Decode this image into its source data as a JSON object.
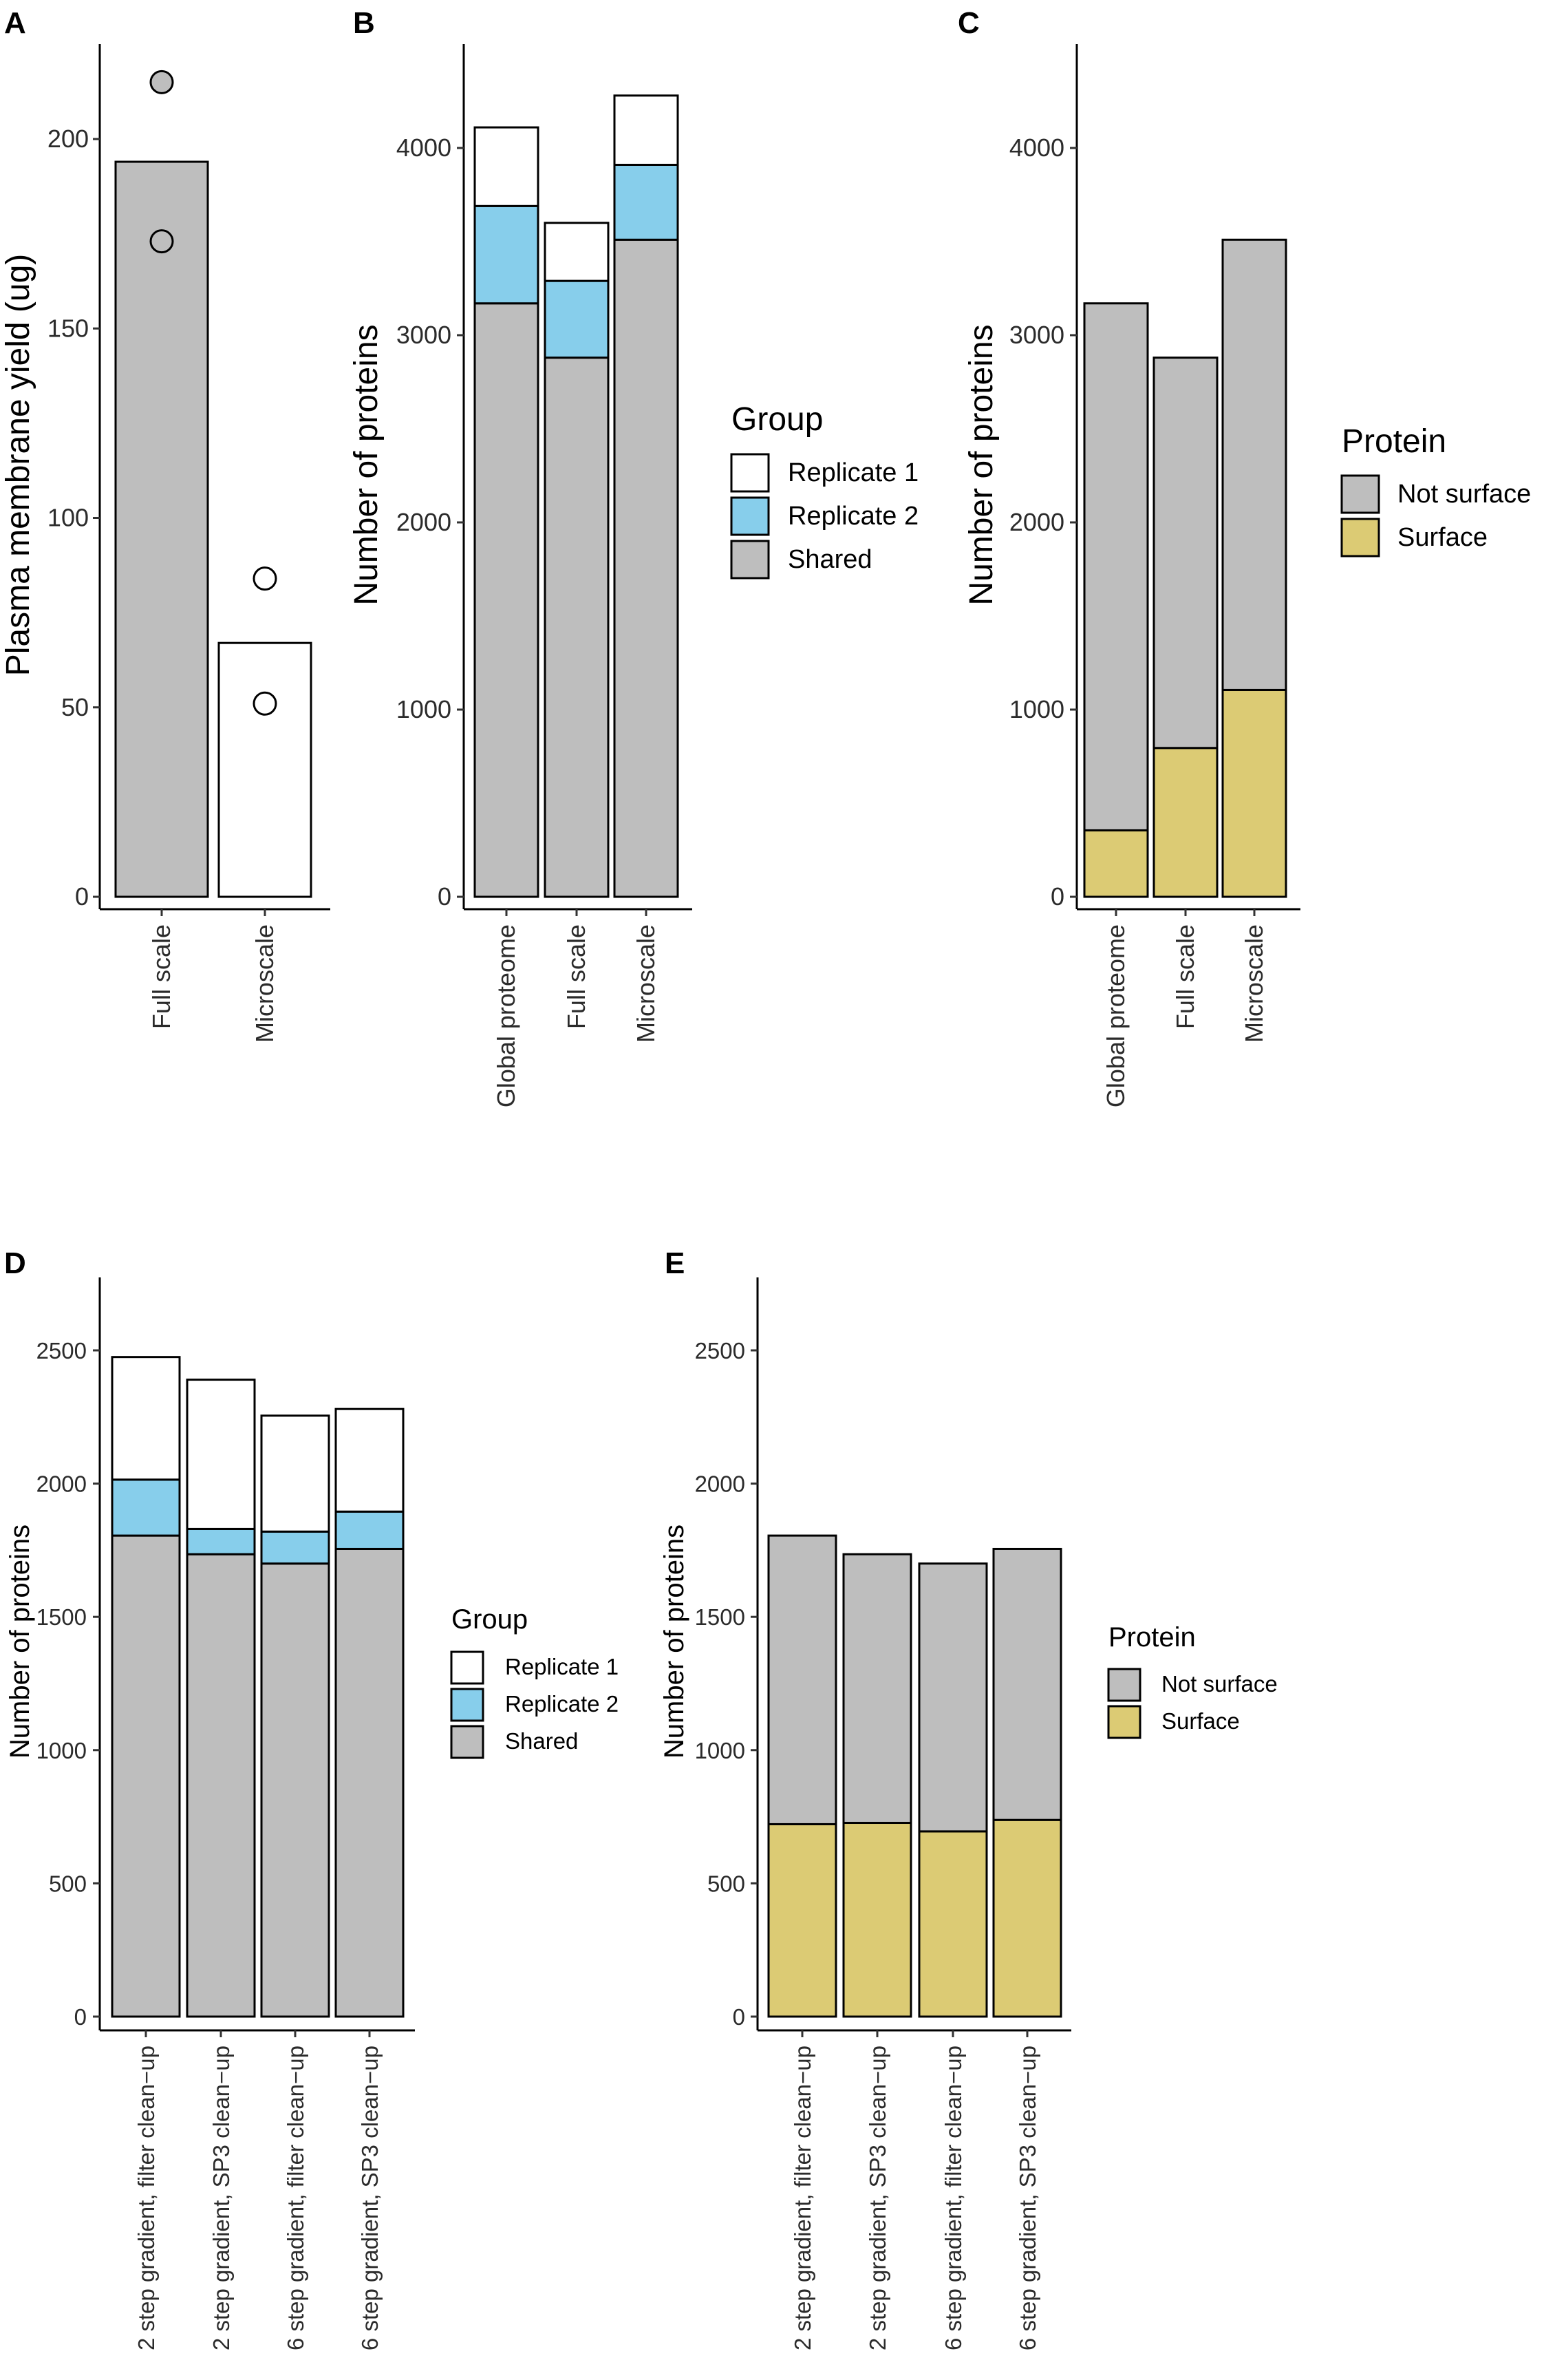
{
  "chart_data": [
    {
      "panel": "A",
      "type": "bar",
      "categories": [
        "Full scale",
        "Microscale"
      ],
      "values": [
        194,
        67
      ],
      "points": [
        [
          215,
          173
        ],
        [
          84,
          51
        ]
      ],
      "bar_fill": [
        "#bebebe",
        "#ffffff"
      ],
      "point_fill": [
        "#bebebe",
        "#ffffff"
      ],
      "ylabel": "Plasma membrane yield (ug)",
      "ylim": [
        0,
        230
      ],
      "yticks": [
        0,
        50,
        100,
        150,
        200
      ]
    },
    {
      "panel": "B",
      "type": "bar",
      "stacked": true,
      "categories": [
        "Global proteome",
        "Full scale",
        "Microscale"
      ],
      "series": [
        {
          "name": "Shared",
          "color": "#bebebe",
          "values": [
            3170,
            2880,
            3510
          ]
        },
        {
          "name": "Replicate 2",
          "color": "#87ceeb",
          "values": [
            520,
            410,
            400
          ]
        },
        {
          "name": "Replicate 1",
          "color": "#ffffff",
          "values": [
            420,
            310,
            370
          ]
        }
      ],
      "ylabel": "Number of proteins",
      "ylim": [
        0,
        4500
      ],
      "yticks": [
        0,
        1000,
        2000,
        3000,
        4000
      ],
      "legend": {
        "title": "Group",
        "items": [
          "Replicate 1",
          "Replicate 2",
          "Shared"
        ]
      }
    },
    {
      "panel": "C",
      "type": "bar",
      "stacked": true,
      "categories": [
        "Global proteome",
        "Full scale",
        "Microscale"
      ],
      "series": [
        {
          "name": "Surface",
          "color": "#dccb74",
          "values": [
            355,
            795,
            1105
          ]
        },
        {
          "name": "Not surface",
          "color": "#bebebe",
          "values": [
            2815,
            2085,
            2405
          ]
        }
      ],
      "ylabel": "Number of proteins",
      "ylim": [
        0,
        4500
      ],
      "yticks": [
        0,
        1000,
        2000,
        3000,
        4000
      ],
      "legend": {
        "title": "Protein",
        "items": [
          "Not surface",
          "Surface"
        ]
      }
    },
    {
      "panel": "D",
      "type": "bar",
      "stacked": true,
      "categories": [
        "2 step gradient, filter clean−up",
        "2 step gradient, SP3 clean−up",
        "6 step gradient, filter clean−up",
        "6 step gradient, SP3 clean−up"
      ],
      "series": [
        {
          "name": "Shared",
          "color": "#bebebe",
          "values": [
            1805,
            1735,
            1700,
            1755
          ]
        },
        {
          "name": "Replicate 2",
          "color": "#87ceeb",
          "values": [
            210,
            95,
            120,
            140
          ]
        },
        {
          "name": "Replicate 1",
          "color": "#ffffff",
          "values": [
            460,
            560,
            435,
            385
          ]
        }
      ],
      "ylabel": "Number of proteins",
      "ylim": [
        0,
        2620
      ],
      "yticks": [
        0,
        500,
        1000,
        1500,
        2000,
        2500
      ],
      "legend": {
        "title": "Group",
        "items": [
          "Replicate 1",
          "Replicate 2",
          "Shared"
        ]
      }
    },
    {
      "panel": "E",
      "type": "bar",
      "stacked": true,
      "categories": [
        "2 step gradient, filter clean−up",
        "2 step gradient, SP3 clean−up",
        "6 step gradient, filter clean−up",
        "6 step gradient, SP3 clean−up"
      ],
      "series": [
        {
          "name": "Surface",
          "color": "#dccb74",
          "values": [
            722,
            727,
            695,
            738
          ]
        },
        {
          "name": "Not surface",
          "color": "#bebebe",
          "values": [
            1083,
            1008,
            1005,
            1017
          ]
        }
      ],
      "ylabel": "Number of proteins",
      "ylim": [
        0,
        2620
      ],
      "yticks": [
        0,
        500,
        1000,
        1500,
        2000,
        2500
      ],
      "legend": {
        "title": "Protein",
        "items": [
          "Not surface",
          "Surface"
        ]
      }
    }
  ]
}
